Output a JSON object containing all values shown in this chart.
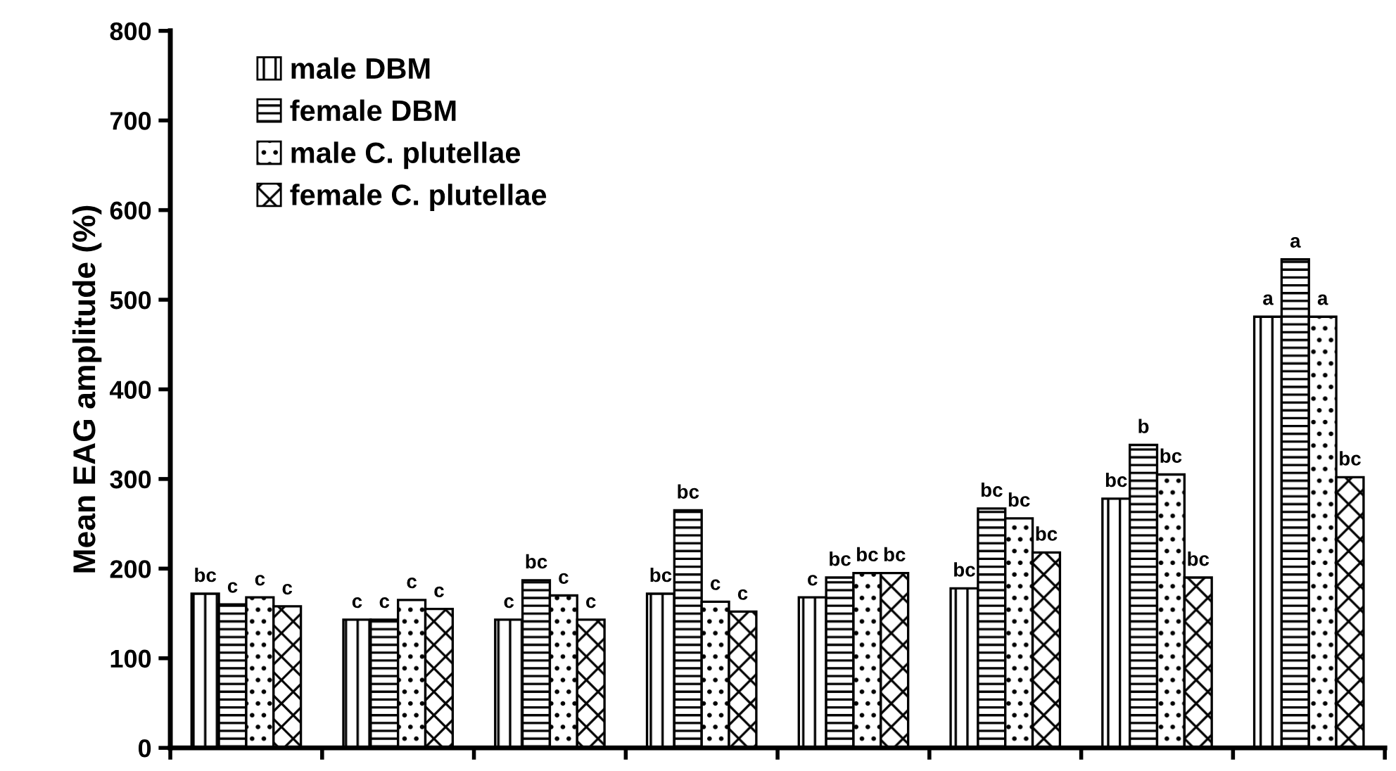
{
  "chart_data": {
    "type": "bar",
    "ylabel": "Mean EAG amplitude (%)",
    "categories": [
      null,
      null,
      null,
      null,
      null,
      null,
      null,
      null
    ],
    "series": [
      {
        "name": "male DBM",
        "color": "#000000",
        "values": [
          172,
          143,
          143,
          172,
          168,
          178,
          278,
          481
        ],
        "value_labels": [
          "bc",
          "c",
          "c",
          "bc",
          "c",
          "bc",
          "bc",
          "a"
        ]
      },
      {
        "name": "female DBM",
        "color": "#000000",
        "values": [
          160,
          143,
          187,
          265,
          190,
          267,
          338,
          545
        ],
        "value_labels": [
          "c",
          "c",
          "bc",
          "bc",
          "bc",
          "bc",
          "b",
          "a"
        ]
      },
      {
        "name": "male C. plutellae",
        "color": "#000000",
        "values": [
          168,
          165,
          170,
          163,
          195,
          256,
          305,
          481
        ],
        "value_labels": [
          "c",
          "c",
          "c",
          "c",
          "bc",
          "bc",
          "bc",
          "a"
        ]
      },
      {
        "name": "female C. plutellae",
        "color": "#000000",
        "values": [
          158,
          155,
          143,
          152,
          195,
          218,
          190,
          302
        ],
        "value_labels": [
          "c",
          "c",
          "c",
          "c",
          "bc",
          "bc",
          "bc",
          "bc"
        ]
      }
    ],
    "ylim": [
      0,
      800
    ],
    "yticks": [
      0,
      100,
      200,
      300,
      400,
      500,
      600,
      700,
      800
    ],
    "grid": false,
    "legend": "top left"
  }
}
